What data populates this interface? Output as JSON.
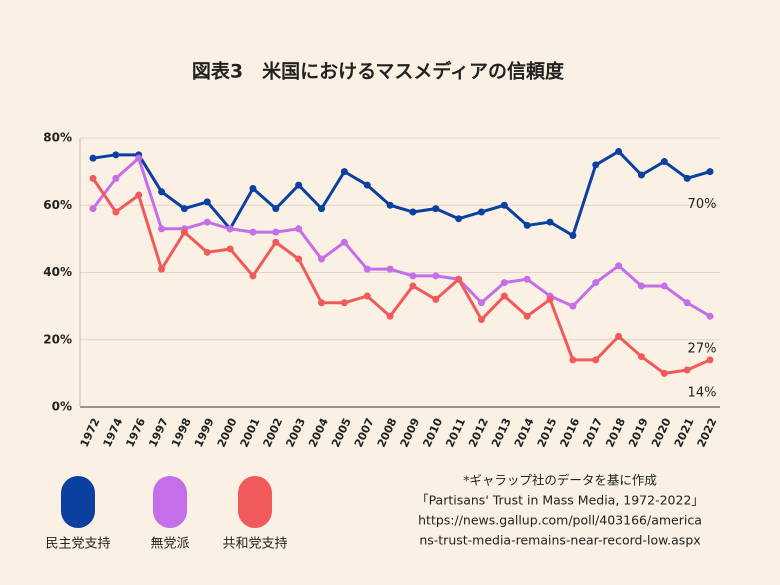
{
  "chart_data": {
    "type": "line",
    "title": "図表3　米国におけるマスメディアの信頼度",
    "categories": [
      "1972",
      "1974",
      "1976",
      "1997",
      "1998",
      "1999",
      "2000",
      "2001",
      "2002",
      "2003",
      "2004",
      "2005",
      "2007",
      "2008",
      "2009",
      "2010",
      "2011",
      "2012",
      "2013",
      "2014",
      "2015",
      "2016",
      "2017",
      "2018",
      "2019",
      "2020",
      "2021",
      "2022"
    ],
    "series": [
      {
        "name": "民主党支持",
        "color": "#0b3fa0",
        "values": [
          74,
          75,
          75,
          64,
          59,
          61,
          53,
          65,
          59,
          66,
          59,
          70,
          66,
          60,
          58,
          59,
          56,
          58,
          60,
          54,
          55,
          51,
          72,
          76,
          69,
          73,
          68,
          70
        ],
        "value_labels": [
          null,
          null,
          null,
          null,
          null,
          null,
          null,
          null,
          null,
          null,
          null,
          null,
          null,
          null,
          null,
          null,
          null,
          null,
          null,
          null,
          null,
          null,
          null,
          null,
          null,
          null,
          null,
          "70%"
        ]
      },
      {
        "name": "無党派",
        "color": "#c46ee8",
        "values": [
          59,
          68,
          74,
          53,
          53,
          55,
          53,
          52,
          52,
          53,
          44,
          49,
          41,
          41,
          39,
          39,
          38,
          31,
          37,
          38,
          33,
          30,
          37,
          42,
          36,
          36,
          31,
          27
        ],
        "value_labels": [
          null,
          null,
          null,
          null,
          null,
          null,
          null,
          null,
          null,
          null,
          null,
          null,
          null,
          null,
          null,
          null,
          null,
          null,
          null,
          null,
          null,
          null,
          null,
          null,
          null,
          null,
          null,
          "27%"
        ]
      },
      {
        "name": "共和党支持",
        "color": "#f05a5a",
        "values": [
          68,
          58,
          63,
          41,
          52,
          46,
          47,
          39,
          49,
          44,
          31,
          31,
          33,
          27,
          36,
          32,
          38,
          26,
          33,
          27,
          32,
          14,
          14,
          21,
          15,
          10,
          11,
          14
        ],
        "value_labels": [
          null,
          null,
          null,
          null,
          null,
          null,
          null,
          null,
          null,
          null,
          null,
          null,
          null,
          null,
          null,
          null,
          null,
          null,
          null,
          null,
          null,
          null,
          null,
          null,
          null,
          null,
          null,
          "14%"
        ]
      }
    ],
    "ylim": [
      0,
      80
    ],
    "yticks": [
      {
        "value": 0,
        "label": "0%"
      },
      {
        "value": 20,
        "label": "20%"
      },
      {
        "value": 40,
        "label": "40%"
      },
      {
        "value": 60,
        "label": "60%"
      },
      {
        "value": 80,
        "label": "80%"
      }
    ],
    "grid": true,
    "notes": [
      "*ギャラップ社のデータを基に作成",
      "「Partisans' Trust in Mass Media, 1972-2022」",
      "https://news.gallup.com/poll/403166/america",
      "ns-trust-media-remains-near-record-low.aspx"
    ]
  }
}
